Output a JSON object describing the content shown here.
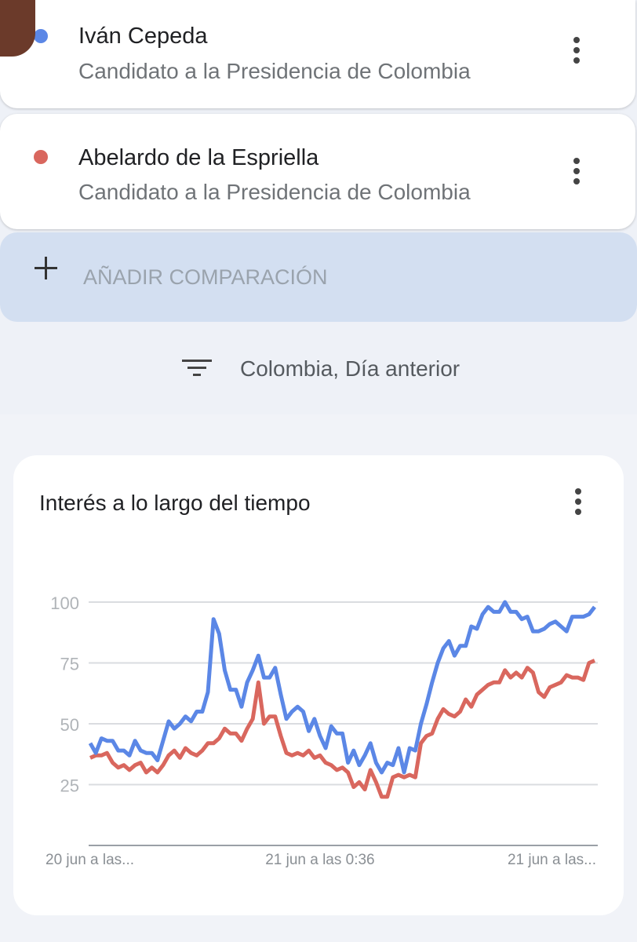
{
  "comparisons": [
    {
      "subtitle": "Candidato a la Presidencia de Colombia"
    },
    {
      "subtitle": "Candidato a la Presidencia de Colombia"
    }
  ],
  "add_button": "AÑADIR COMPARACIÓN",
  "filter": "Colombia, Día anterior",
  "chart_data": {
    "type": "line",
    "title": "Interés a lo largo del tiempo",
    "categories": [
      "20 jun a las...",
      null,
      null,
      null,
      null,
      null,
      null,
      null,
      null,
      null,
      null,
      null,
      null,
      null,
      null,
      null,
      null,
      null,
      null,
      null,
      null,
      null,
      null,
      null,
      null,
      null,
      null,
      null,
      null,
      null,
      null,
      null,
      null,
      null,
      null,
      null,
      null,
      null,
      null,
      null,
      null,
      "21 jun a las 0:36",
      null,
      null,
      null,
      null,
      null,
      null,
      null,
      null,
      null,
      null,
      null,
      null,
      null,
      null,
      null,
      null,
      null,
      null,
      null,
      null,
      null,
      null,
      null,
      null,
      null,
      null,
      null,
      null,
      null,
      null,
      null,
      null,
      null,
      null,
      null,
      null,
      null,
      null,
      null,
      null,
      null,
      null,
      null,
      null,
      null,
      null,
      null,
      null,
      "21 jun a las..."
    ],
    "series": [
      {
        "name": "Iván Cepeda",
        "color": "#5b87e6",
        "values": [
          42,
          38,
          44,
          43,
          43,
          39,
          39,
          37,
          43,
          39,
          38,
          38,
          35,
          43,
          51,
          48,
          50,
          53,
          51,
          55,
          55,
          63,
          93,
          87,
          72,
          64,
          64,
          57,
          67,
          72,
          78,
          69,
          69,
          73,
          62,
          52,
          55,
          57,
          55,
          47,
          52,
          45,
          40,
          49,
          46,
          46,
          34,
          39,
          33,
          37,
          42,
          34,
          30,
          34,
          33,
          40,
          30,
          40,
          39,
          50,
          58,
          67,
          75,
          81,
          84,
          78,
          82,
          82,
          90,
          89,
          95,
          98,
          96,
          96,
          100,
          96,
          96,
          93,
          94,
          88,
          88,
          89,
          91,
          92,
          90,
          88,
          94,
          94,
          94,
          95,
          98
        ]
      },
      {
        "name": "Abelardo de la Espriella",
        "color": "#d9675e",
        "values": [
          36,
          37,
          37,
          38,
          34,
          32,
          33,
          31,
          33,
          34,
          30,
          32,
          30,
          33,
          37,
          39,
          36,
          40,
          38,
          37,
          39,
          42,
          42,
          44,
          48,
          46,
          46,
          43,
          48,
          52,
          67,
          50,
          53,
          53,
          45,
          38,
          37,
          38,
          37,
          39,
          36,
          37,
          34,
          33,
          31,
          32,
          30,
          24,
          26,
          23,
          31,
          26,
          20,
          20,
          28,
          29,
          28,
          29,
          28,
          42,
          45,
          46,
          52,
          56,
          54,
          53,
          55,
          60,
          57,
          62,
          64,
          66,
          67,
          67,
          72,
          69,
          71,
          69,
          73,
          71,
          63,
          61,
          65,
          66,
          67,
          70,
          69,
          69,
          68,
          75,
          76
        ]
      }
    ],
    "ylim": [
      0,
      100
    ],
    "yticks": [
      25,
      50,
      75,
      100
    ],
    "grid": true
  }
}
